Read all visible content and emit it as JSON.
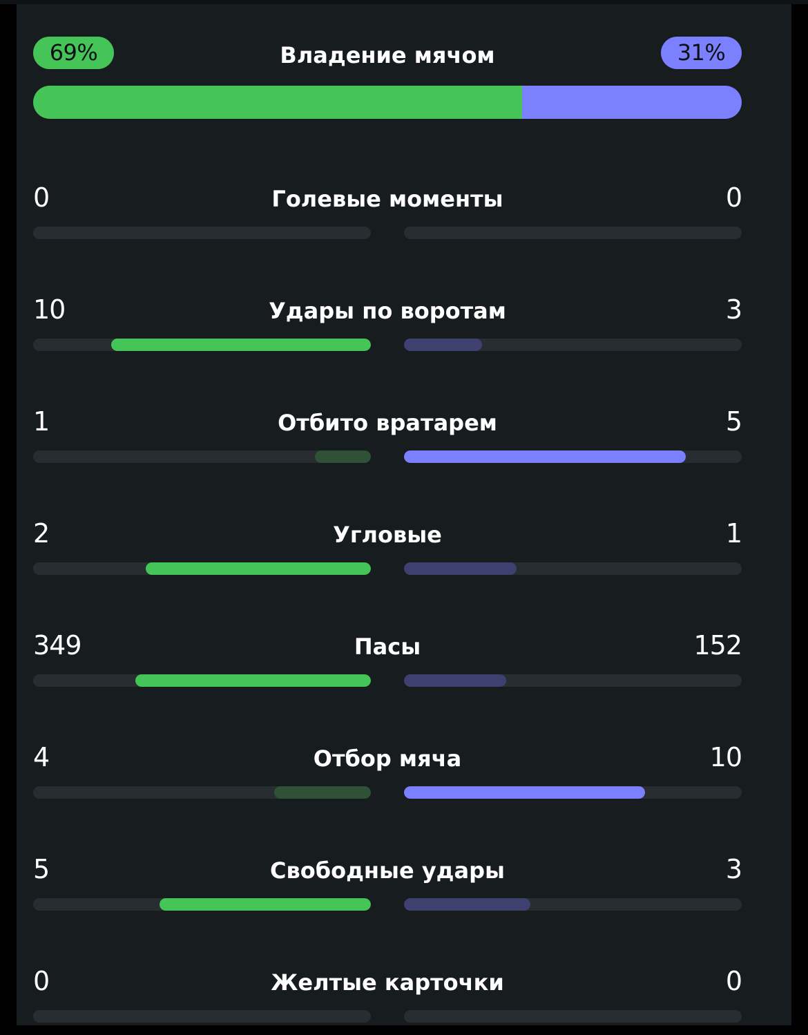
{
  "colors": {
    "home": "#45c457",
    "away": "#7b80ff",
    "home_dim": "#2f5136",
    "away_dim": "#3e4170",
    "track": "#272d31",
    "background": "#171c1f"
  },
  "possession": {
    "label": "Владение мячом",
    "home_text": "69%",
    "away_text": "31%",
    "home_value": 69,
    "away_value": 31
  },
  "stats": [
    {
      "label": "Голевые моменты",
      "home": "0",
      "away": "0"
    },
    {
      "label": "Удары по воротам",
      "home": "10",
      "away": "3"
    },
    {
      "label": "Отбито вратарем",
      "home": "1",
      "away": "5"
    },
    {
      "label": "Угловые",
      "home": "2",
      "away": "1"
    },
    {
      "label": "Пасы",
      "home": "349",
      "away": "152"
    },
    {
      "label": "Отбор мяча",
      "home": "4",
      "away": "10"
    },
    {
      "label": "Свободные удары",
      "home": "5",
      "away": "3"
    },
    {
      "label": "Желтые карточки",
      "home": "0",
      "away": "0"
    }
  ]
}
